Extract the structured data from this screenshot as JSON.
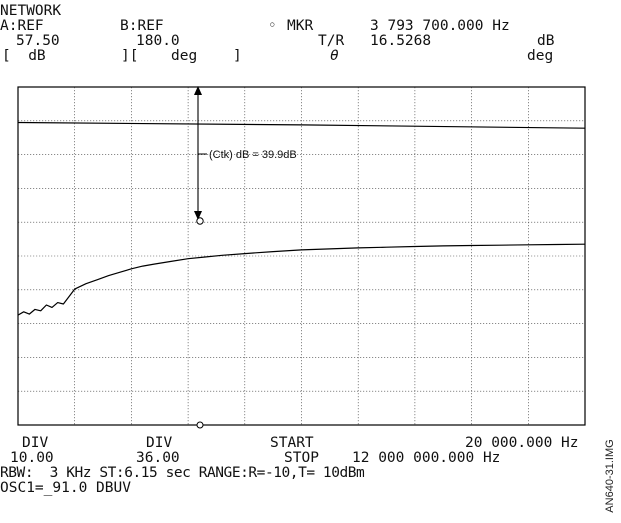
{
  "header": {
    "title": "NETWORK",
    "a_label": "A:REF",
    "b_label": "B:REF",
    "mkr_symbol": "◦",
    "mkr_label": "MKR",
    "mkr_freq": "3 793 700.000 Hz",
    "a_value": "57.50",
    "b_value": "180.0",
    "tr_label": "T/R",
    "tr_value": "16.5268",
    "tr_unit": "dB",
    "scale_a": "[  dB",
    "scale_sep": "][",
    "scale_b": "deg",
    "scale_close": "]",
    "theta": "θ",
    "unit_right": "deg"
  },
  "footer": {
    "div1_label": "DIV",
    "div1_value": "10.00",
    "div2_label": "DIV",
    "div2_value": "36.00",
    "start_label": "START",
    "start_value": "20 000.000 Hz",
    "stop_label": "STOP",
    "stop_value": "12 000 000.000 Hz",
    "rbw_line": "RBW:  3 KHz ST:6.15 sec RANGE:R=-10,T= 10dBm",
    "osc_line": "OSC1=_91.0 DBUV"
  },
  "side_label": "AN640-31.IMG",
  "annotation": "(Ctk) dB = 39.9dB",
  "chart_data": {
    "type": "line",
    "grid": true,
    "x_divisions": 10,
    "y_divisions": 10,
    "xlim": [
      20000,
      12000000
    ],
    "xlabel": "",
    "ylabel": "",
    "marker_x": 3793700,
    "annotation_dB": 39.9,
    "series": [
      {
        "x": [
          0.0,
          0.01,
          0.02,
          0.03,
          0.04,
          0.05,
          0.06,
          0.07,
          0.08,
          0.09,
          0.1,
          0.12,
          0.14,
          0.16,
          0.18,
          0.2,
          0.22,
          0.24,
          0.27,
          0.3,
          0.33,
          0.36,
          0.4,
          0.45,
          0.5,
          0.55,
          0.6,
          0.65,
          0.7,
          0.75,
          0.8,
          0.85,
          0.9,
          0.95,
          1.0
        ],
        "y": [
          3.25,
          3.35,
          3.28,
          3.42,
          3.38,
          3.55,
          3.48,
          3.62,
          3.58,
          3.8,
          4.02,
          4.18,
          4.3,
          4.42,
          4.52,
          4.62,
          4.7,
          4.76,
          4.84,
          4.92,
          4.97,
          5.02,
          5.07,
          5.13,
          5.18,
          5.21,
          5.24,
          5.26,
          5.28,
          5.3,
          5.31,
          5.32,
          5.33,
          5.34,
          5.35
        ]
      },
      {
        "x": [
          0.0,
          0.5,
          1.0
        ],
        "y": [
          8.95,
          8.88,
          8.78
        ]
      }
    ]
  }
}
